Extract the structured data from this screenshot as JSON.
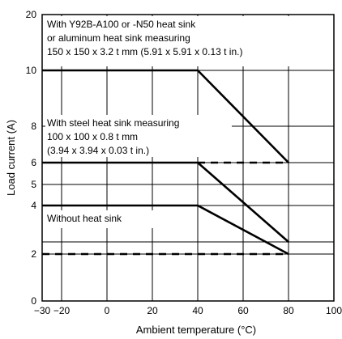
{
  "chart_data": {
    "type": "line",
    "title": "",
    "xlabel": "Ambient temperature (°C)",
    "ylabel": "Load current (A)",
    "xlim": [
      -30,
      100
    ],
    "ylim": [
      0,
      20
    ],
    "x_ticks": [
      "−30",
      "−20",
      "0",
      "20",
      "40",
      "60",
      "80",
      "100"
    ],
    "y_ticks": [
      "0",
      "2",
      "4",
      "5",
      "6",
      "8",
      "10",
      "20"
    ],
    "grid": true,
    "series": [
      {
        "points": [
          [
            -30,
            10
          ],
          [
            40,
            10
          ],
          [
            80,
            6
          ]
        ],
        "dashed_extension": null
      },
      {
        "points": [
          [
            -30,
            6
          ],
          [
            40,
            6
          ],
          [
            80,
            2.5
          ]
        ],
        "dashed_extension": [
          [
            40,
            6
          ],
          [
            80,
            6
          ]
        ]
      },
      {
        "points": [
          [
            -30,
            4
          ],
          [
            40,
            4
          ],
          [
            80,
            2
          ]
        ],
        "dashed_extension": [
          [
            -30,
            2
          ],
          [
            80,
            2
          ]
        ]
      }
    ],
    "annotations": [
      {
        "lines": [
          "With Y92B-A100 or -N50 heat sink",
          "or aluminum heat sink measuring",
          "150 x 150 x 3.2 t mm (5.91 x 5.91 x 0.13 t in.)"
        ]
      },
      {
        "lines": [
          "With steel heat sink measuring",
          "100 x 100 x 0.8 t mm",
          "(3.94 x 3.94 x 0.03 t in.)"
        ]
      },
      {
        "lines": [
          "Without heat sink"
        ]
      }
    ]
  }
}
